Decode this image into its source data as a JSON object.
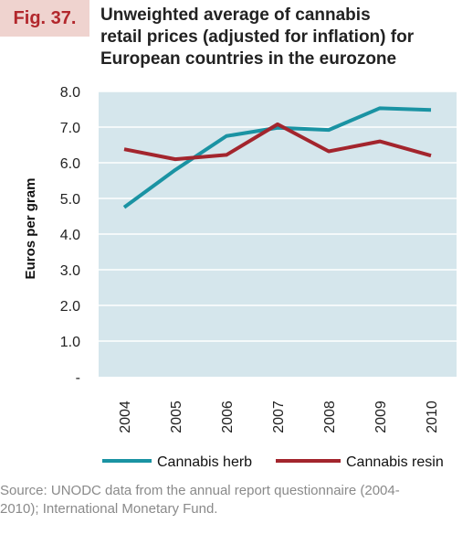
{
  "figure": {
    "label": "Fig. 37.",
    "title_lines": [
      "Unweighted average of cannabis",
      "retail prices (adjusted for inflation) for",
      "European countries in the eurozone"
    ],
    "source_lines": [
      "Source: UNODC data from the annual report questionnaire (2004-",
      "2010); International Monetary Fund."
    ]
  },
  "colors": {
    "plot_background": "#d5e6ec",
    "label_background": "#efd3cf",
    "label_text": "#b2272c",
    "herb": "#1a93a3",
    "resin": "#a3252d"
  },
  "chart_data": {
    "type": "line",
    "title": "Unweighted average of cannabis retail prices (adjusted for inflation) for European countries in the eurozone",
    "xlabel": "",
    "ylabel": "Euros per gram",
    "categories": [
      "2004",
      "2005",
      "2006",
      "2007",
      "2008",
      "2009",
      "2010"
    ],
    "y_tick_labels": [
      "-",
      "1.0",
      "2.0",
      "3.0",
      "4.0",
      "5.0",
      "6.0",
      "7.0",
      "8.0"
    ],
    "ylim": [
      0,
      8
    ],
    "grid": true,
    "legend_position": "bottom",
    "series": [
      {
        "name": "Cannabis herb",
        "color": "#1a93a3",
        "values": [
          4.75,
          5.8,
          6.75,
          6.98,
          6.92,
          7.53,
          7.48
        ]
      },
      {
        "name": "Cannabis resin",
        "color": "#a3252d",
        "values": [
          6.38,
          6.1,
          6.22,
          7.08,
          6.32,
          6.6,
          6.2
        ]
      }
    ]
  }
}
